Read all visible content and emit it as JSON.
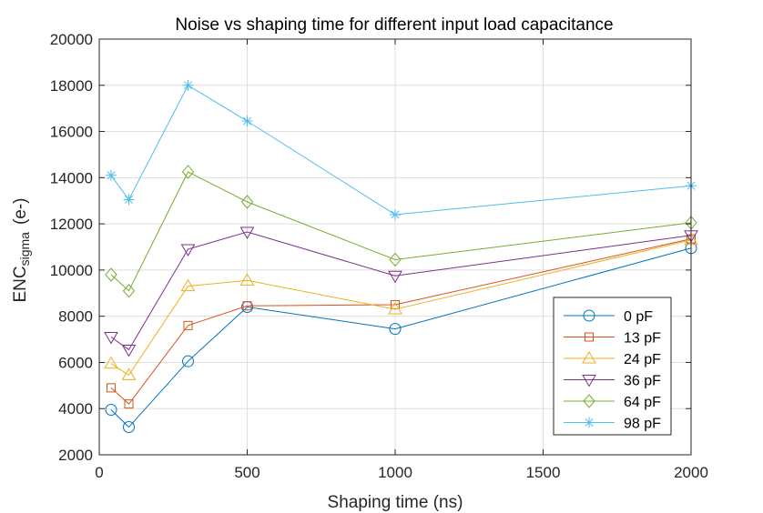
{
  "chart_data": {
    "type": "line",
    "title": "Noise vs shaping time for different input load capacitance",
    "xlabel": "Shaping time (ns)",
    "ylabel": {
      "main": "ENC",
      "subscript": "sigma",
      "unit": "(e-)"
    },
    "xlim": [
      0,
      2000
    ],
    "ylim": [
      2000,
      20000
    ],
    "xticks": [
      0,
      500,
      1000,
      1500,
      2000
    ],
    "yticks": [
      2000,
      4000,
      6000,
      8000,
      10000,
      12000,
      14000,
      16000,
      18000,
      20000
    ],
    "grid": true,
    "legend_position": "bottom-right",
    "x": [
      40,
      100,
      300,
      500,
      1000,
      2000
    ],
    "series": [
      {
        "name": "0 pF",
        "marker": "circle",
        "color": "#0072BD",
        "values": [
          3950,
          3200,
          6050,
          8400,
          7450,
          10950
        ]
      },
      {
        "name": "13 pF",
        "marker": "square",
        "color": "#D95319",
        "values": [
          4900,
          4200,
          7600,
          8450,
          8500,
          11350
        ]
      },
      {
        "name": "24 pF",
        "marker": "triangle-up",
        "color": "#EDB120",
        "values": [
          5950,
          5450,
          9300,
          9550,
          8300,
          11300
        ]
      },
      {
        "name": "36 pF",
        "marker": "triangle-down",
        "color": "#7E2F8E",
        "values": [
          7100,
          6550,
          10900,
          11650,
          9750,
          11500
        ]
      },
      {
        "name": "64 pF",
        "marker": "diamond",
        "color": "#77AC30",
        "values": [
          9800,
          9100,
          14250,
          12950,
          10450,
          12050
        ]
      },
      {
        "name": "98 pF",
        "marker": "asterisk",
        "color": "#4DBEEE",
        "values": [
          14100,
          13050,
          18000,
          16450,
          12400,
          13650
        ]
      }
    ]
  }
}
